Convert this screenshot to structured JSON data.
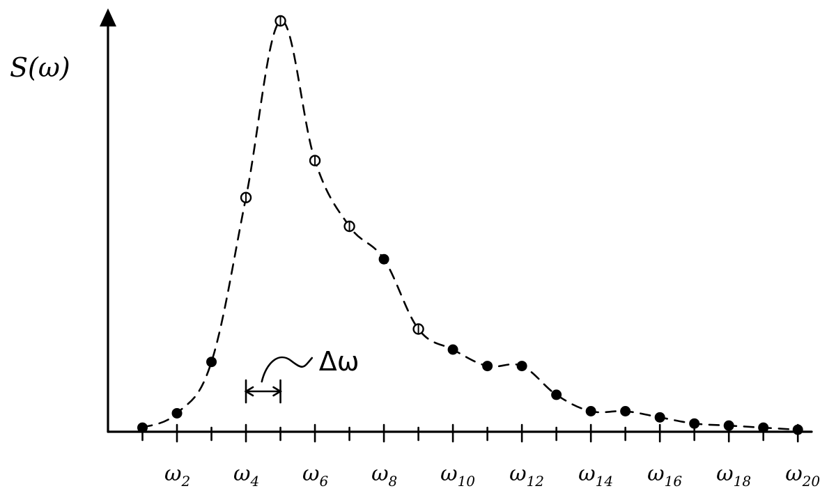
{
  "chart_data": {
    "type": "scatter",
    "ylabel": "S(ω)",
    "xlabel": "",
    "x_tick_indices": [
      2,
      4,
      6,
      8,
      10,
      12,
      14,
      16,
      18,
      20
    ],
    "x_tick_labels": [
      "ω2",
      "ω4",
      "ω6",
      "ω8",
      "ω10",
      "ω12",
      "ω14",
      "ω16",
      "ω18",
      "ω20"
    ],
    "x_range": [
      0,
      20.4
    ],
    "y_range": [
      0,
      100
    ],
    "grid": false,
    "legend": "none",
    "series": [
      {
        "x": [
          1,
          2,
          3,
          4,
          5,
          6,
          7,
          8,
          9,
          10,
          11,
          12,
          13,
          14,
          15,
          16,
          17,
          18,
          19,
          20
        ],
        "y": [
          1,
          4.5,
          17,
          57,
          100,
          66,
          50,
          42,
          25,
          20,
          16,
          16,
          9,
          5,
          5,
          3.5,
          2,
          1.5,
          1,
          0.5
        ],
        "markers": [
          "filled",
          "filled",
          "filled",
          "open",
          "open",
          "open",
          "open",
          "filled",
          "open",
          "filled",
          "filled",
          "filled",
          "filled",
          "filled",
          "filled",
          "filled",
          "filled",
          "filled",
          "filled",
          "filled"
        ],
        "line_style": "dashed"
      }
    ],
    "annotation": {
      "text": "Δω",
      "from_index": 4,
      "to_index": 5
    }
  }
}
